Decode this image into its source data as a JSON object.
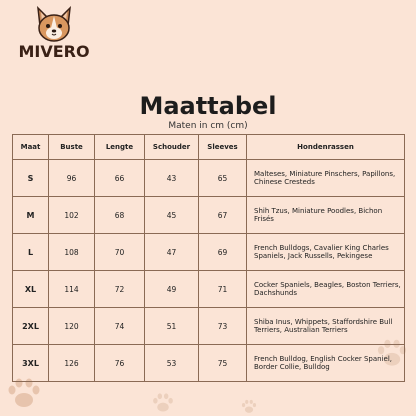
{
  "brand": {
    "name": "MIVERO"
  },
  "page": {
    "title": "Maattabel",
    "subtitle": "Maten in cm (cm)"
  },
  "colors": {
    "background": "#fbe4d6",
    "border": "#8a6a55",
    "paw": "#d9b49c"
  },
  "table": {
    "headers": [
      "Maat",
      "Buste",
      "Lengte",
      "Schouder",
      "Sleeves",
      "Hondenrassen"
    ],
    "rows": [
      {
        "maat": "S",
        "buste": "96",
        "lengte": "66",
        "schouder": "43",
        "sleeves": "65",
        "breeds": "Malteses, Miniature Pinschers, Papillons, Chinese Cresteds"
      },
      {
        "maat": "M",
        "buste": "102",
        "lengte": "68",
        "schouder": "45",
        "sleeves": "67",
        "breeds": "Shih Tzus, Miniature Poodles, Bichon Frisés"
      },
      {
        "maat": "L",
        "buste": "108",
        "lengte": "70",
        "schouder": "47",
        "sleeves": "69",
        "breeds": "French Bulldogs, Cavalier King Charles Spaniels, Jack Russells, Pekingese"
      },
      {
        "maat": "XL",
        "buste": "114",
        "lengte": "72",
        "schouder": "49",
        "sleeves": "71",
        "breeds": "Cocker Spaniels, Beagles, Boston Terriers, Dachshunds"
      },
      {
        "maat": "2XL",
        "buste": "120",
        "lengte": "74",
        "schouder": "51",
        "sleeves": "73",
        "breeds": "Shiba Inus, Whippets, Staffordshire Bull Terriers, Australian Terriers"
      },
      {
        "maat": "3XL",
        "buste": "126",
        "lengte": "76",
        "schouder": "53",
        "sleeves": "75",
        "breeds": "French Bulldog, English Cocker Spaniel, Border Collie, Bulldog"
      }
    ]
  }
}
